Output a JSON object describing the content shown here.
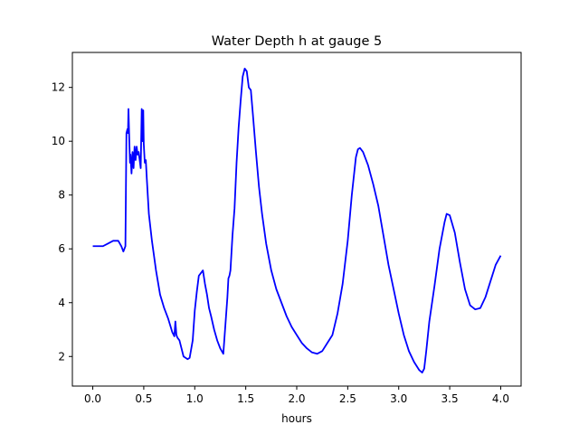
{
  "chart_data": {
    "type": "line",
    "title": "Water Depth h at gauge 5",
    "xlabel": "hours",
    "ylabel": "",
    "xlim": [
      -0.2,
      4.2
    ],
    "ylim": [
      0.9,
      13.3
    ],
    "xticks": [
      0.0,
      0.5,
      1.0,
      1.5,
      2.0,
      2.5,
      3.0,
      3.5,
      4.0
    ],
    "xtick_labels": [
      "0.0",
      "0.5",
      "1.0",
      "1.5",
      "2.0",
      "2.5",
      "3.0",
      "3.5",
      "4.0"
    ],
    "yticks": [
      2,
      4,
      6,
      8,
      10,
      12
    ],
    "ytick_labels": [
      "2",
      "4",
      "6",
      "8",
      "10",
      "12"
    ],
    "grid": false,
    "series": [
      {
        "color": "#0000ff",
        "x": [
          0.0,
          0.05,
          0.1,
          0.15,
          0.2,
          0.25,
          0.28,
          0.3,
          0.32,
          0.33,
          0.34,
          0.345,
          0.35,
          0.355,
          0.36,
          0.365,
          0.37,
          0.38,
          0.39,
          0.4,
          0.41,
          0.42,
          0.43,
          0.44,
          0.45,
          0.46,
          0.47,
          0.48,
          0.49,
          0.495,
          0.5,
          0.51,
          0.52,
          0.53,
          0.55,
          0.58,
          0.62,
          0.66,
          0.7,
          0.74,
          0.78,
          0.8,
          0.81,
          0.82,
          0.83,
          0.85,
          0.87,
          0.89,
          0.91,
          0.93,
          0.95,
          0.98,
          1.0,
          1.02,
          1.04,
          1.06,
          1.08,
          1.1,
          1.12,
          1.14,
          1.16,
          1.19,
          1.22,
          1.25,
          1.28,
          1.32,
          1.33,
          1.34,
          1.35,
          1.37,
          1.39,
          1.41,
          1.43,
          1.45,
          1.47,
          1.49,
          1.51,
          1.52,
          1.53,
          1.55,
          1.57,
          1.6,
          1.63,
          1.66,
          1.7,
          1.75,
          1.8,
          1.85,
          1.9,
          1.95,
          2.0,
          2.05,
          2.1,
          2.15,
          2.2,
          2.25,
          2.3,
          2.35,
          2.4,
          2.45,
          2.5,
          2.54,
          2.58,
          2.6,
          2.62,
          2.65,
          2.7,
          2.75,
          2.8,
          2.85,
          2.9,
          2.95,
          3.0,
          3.05,
          3.1,
          3.15,
          3.2,
          3.23,
          3.25,
          3.27,
          3.3,
          3.35,
          3.4,
          3.45,
          3.47,
          3.5,
          3.55,
          3.6,
          3.65,
          3.7,
          3.75,
          3.8,
          3.85,
          3.9,
          3.95,
          4.0
        ],
        "y": [
          6.1,
          6.1,
          6.1,
          6.2,
          6.3,
          6.3,
          6.1,
          5.9,
          6.1,
          10.3,
          10.45,
          10.3,
          11.2,
          10.5,
          9.8,
          9.2,
          9.5,
          8.8,
          9.6,
          9.0,
          9.8,
          9.3,
          9.8,
          9.5,
          9.6,
          9.3,
          9.0,
          11.2,
          10.0,
          11.15,
          9.9,
          9.2,
          9.3,
          8.6,
          7.3,
          6.3,
          5.2,
          4.3,
          3.8,
          3.4,
          2.9,
          2.75,
          3.3,
          2.8,
          2.7,
          2.6,
          2.3,
          2.0,
          1.95,
          1.9,
          1.95,
          2.6,
          3.7,
          4.4,
          5.0,
          5.1,
          5.2,
          4.7,
          4.3,
          3.8,
          3.5,
          3.0,
          2.6,
          2.3,
          2.1,
          4.2,
          4.9,
          5.0,
          5.2,
          6.5,
          7.5,
          9.2,
          10.5,
          11.5,
          12.4,
          12.7,
          12.6,
          12.3,
          12.0,
          11.9,
          11.0,
          9.6,
          8.3,
          7.3,
          6.2,
          5.2,
          4.5,
          4.0,
          3.5,
          3.1,
          2.8,
          2.5,
          2.3,
          2.15,
          2.1,
          2.2,
          2.5,
          2.8,
          3.6,
          4.7,
          6.3,
          8.0,
          9.4,
          9.7,
          9.75,
          9.6,
          9.1,
          8.4,
          7.6,
          6.5,
          5.4,
          4.5,
          3.6,
          2.8,
          2.2,
          1.8,
          1.5,
          1.4,
          1.55,
          2.2,
          3.3,
          4.6,
          6.0,
          7.0,
          7.3,
          7.25,
          6.6,
          5.5,
          4.5,
          3.9,
          3.75,
          3.8,
          4.2,
          4.8,
          5.4,
          5.75
        ]
      }
    ]
  }
}
